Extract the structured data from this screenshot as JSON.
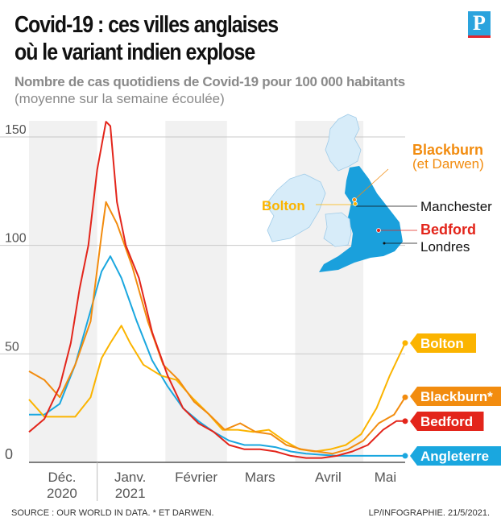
{
  "header": {
    "title_line1": "Covid-19 : ces villes anglaises",
    "title_line2": "où le variant indien explose",
    "subtitle": "Nombre de cas quotidiens de Covid-19 pour 100 000 habitants",
    "subtitle2": "(moyenne sur la semaine écoulée)",
    "logo": "P"
  },
  "footer": {
    "source": "SOURCE : OUR WORLD IN DATA.   * ET DARWEN.",
    "credit": "LP/INFOGRAPHIE.  21/5/2021."
  },
  "map": {
    "labels": {
      "blackburn": "Blackburn",
      "blackburn_sub": "(et Darwen)",
      "bolton": "Bolton",
      "manchester": "Manchester",
      "bedford": "Bedford",
      "londres": "Londres"
    }
  },
  "chart_data": {
    "type": "line",
    "title": "Nombre de cas quotidiens de Covid-19 pour 100 000 habitants",
    "xlabel": "",
    "ylabel": "",
    "x_unit": "days since 1 Dec 2020",
    "xlim": [
      0,
      171
    ],
    "ylim": [
      0,
      160
    ],
    "yticks": [
      0,
      50,
      100,
      150
    ],
    "xtick_labels": [
      {
        "day": 15,
        "l1": "Déc.",
        "l2": "2020"
      },
      {
        "day": 46,
        "l1": "Janv.",
        "l2": "2021"
      },
      {
        "day": 76,
        "l1": "Février",
        "l2": ""
      },
      {
        "day": 105,
        "l1": "Mars",
        "l2": ""
      },
      {
        "day": 136,
        "l1": "Avril",
        "l2": ""
      },
      {
        "day": 162,
        "l1": "Mai",
        "l2": ""
      }
    ],
    "month_bands": [
      [
        0,
        31,
        true
      ],
      [
        31,
        62,
        false
      ],
      [
        62,
        90,
        true
      ],
      [
        90,
        121,
        false
      ],
      [
        121,
        152,
        true
      ],
      [
        152,
        171,
        false
      ]
    ],
    "series": [
      {
        "name": "Angleterre",
        "color": "#1aa7df",
        "x": [
          0,
          7,
          14,
          21,
          28,
          33,
          37,
          42,
          49,
          56,
          63,
          70,
          77,
          84,
          91,
          98,
          105,
          112,
          119,
          126,
          133,
          140,
          147,
          154,
          161,
          171
        ],
        "y": [
          22,
          22,
          27,
          45,
          70,
          88,
          95,
          85,
          65,
          47,
          35,
          25,
          19,
          14,
          10,
          8,
          8,
          7,
          5,
          4,
          3.5,
          3,
          3,
          3,
          3,
          3
        ]
      },
      {
        "name": "Bedford",
        "color": "#e3251b",
        "x": [
          0,
          7,
          14,
          19,
          23,
          27,
          31,
          35,
          37,
          40,
          44,
          50,
          56,
          63,
          70,
          77,
          84,
          91,
          98,
          105,
          112,
          119,
          126,
          133,
          140,
          147,
          154,
          161,
          167,
          171
        ],
        "y": [
          14,
          20,
          35,
          55,
          80,
          100,
          135,
          157,
          155,
          120,
          100,
          85,
          60,
          40,
          25,
          18,
          14,
          8,
          6,
          6,
          5,
          3,
          2,
          2,
          3,
          5,
          8,
          15,
          19,
          19
        ]
      },
      {
        "name": "Blackburn*",
        "color": "#f28c0f",
        "x": [
          0,
          7,
          14,
          21,
          28,
          33,
          35,
          40,
          47,
          54,
          61,
          68,
          75,
          82,
          89,
          96,
          103,
          110,
          117,
          124,
          131,
          138,
          145,
          152,
          159,
          166,
          171
        ],
        "y": [
          42,
          38,
          30,
          45,
          65,
          105,
          120,
          110,
          90,
          65,
          45,
          38,
          28,
          22,
          15,
          18,
          14,
          13,
          8,
          6,
          5,
          4,
          6,
          10,
          18,
          22,
          30
        ]
      },
      {
        "name": "Bolton",
        "color": "#fbb400",
        "x": [
          0,
          7,
          14,
          21,
          28,
          33,
          37,
          42,
          46,
          52,
          60,
          67,
          74,
          81,
          88,
          95,
          102,
          109,
          116,
          123,
          130,
          137,
          144,
          151,
          158,
          164,
          171
        ],
        "y": [
          29,
          21,
          21,
          21,
          30,
          48,
          55,
          63,
          55,
          45,
          40,
          38,
          30,
          23,
          15,
          15,
          14,
          15,
          10,
          6,
          5,
          6,
          8,
          13,
          25,
          40,
          55
        ]
      }
    ]
  }
}
